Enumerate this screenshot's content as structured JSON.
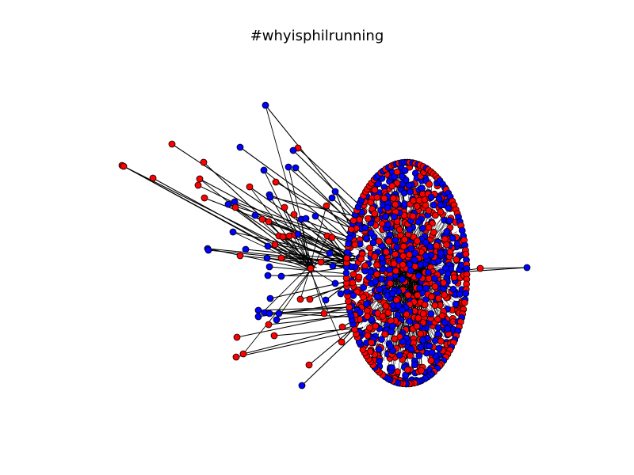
{
  "figure": {
    "title": "#whyisphilrunning"
  },
  "colors": {
    "background": "#ffffff",
    "edge": "#000000",
    "node_outline": "#000000",
    "node_red": "#ff0000",
    "node_blue": "#0000ff"
  }
}
